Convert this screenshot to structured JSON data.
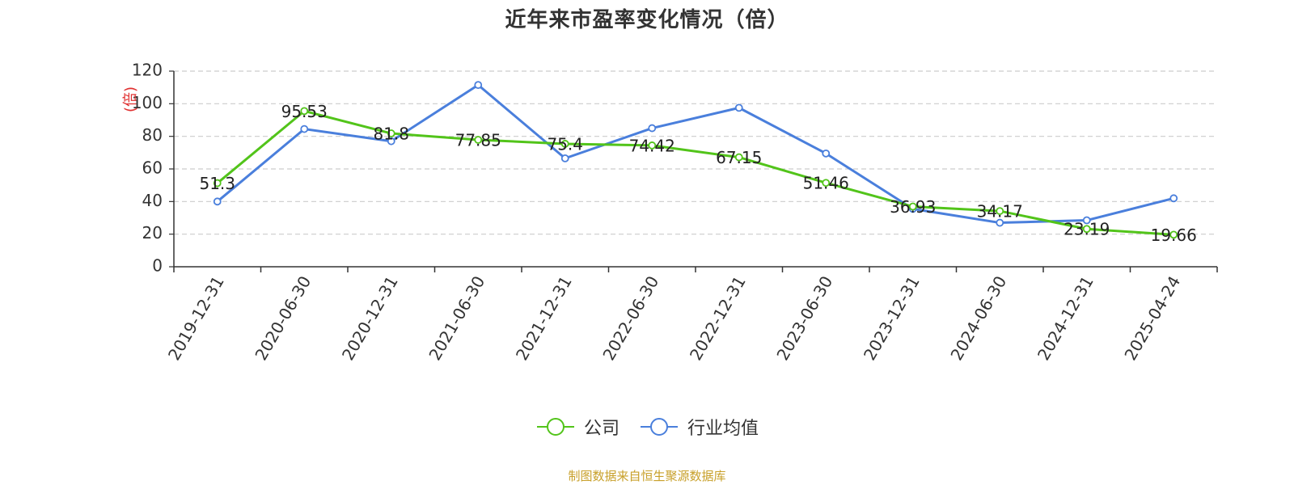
{
  "chart_data": {
    "type": "line",
    "title": "近年来市盈率变化情况（倍）",
    "ylabel": "(倍)",
    "xlabel": "",
    "ylim": [
      0,
      120
    ],
    "yticks": [
      0,
      20,
      40,
      60,
      80,
      100,
      120
    ],
    "grid": true,
    "legend_position": "bottom",
    "categories": [
      "2019-12-31",
      "2020-06-30",
      "2020-12-31",
      "2021-06-30",
      "2021-12-31",
      "2022-06-30",
      "2022-12-31",
      "2023-06-30",
      "2023-12-31",
      "2024-06-30",
      "2024-12-31",
      "2025-04-24"
    ],
    "series": [
      {
        "name": "公司",
        "color": "#52c41a",
        "values": [
          51.3,
          95.53,
          81.8,
          77.85,
          75.4,
          74.42,
          67.15,
          51.46,
          36.93,
          34.17,
          23.19,
          19.66
        ],
        "labels": [
          "51.3",
          "95.53",
          "81.8",
          "77.85",
          "75.4",
          "74.42",
          "67.15",
          "51.46",
          "36.93",
          "34.17",
          "23.19",
          "19.66"
        ]
      },
      {
        "name": "行业均值",
        "color": "#4a7fdc",
        "values": [
          40,
          84.5,
          77,
          111.5,
          66.5,
          85,
          97.5,
          69.5,
          35.5,
          27,
          28.5,
          42
        ]
      }
    ]
  },
  "source_note": "制图数据来自恒生聚源数据库"
}
